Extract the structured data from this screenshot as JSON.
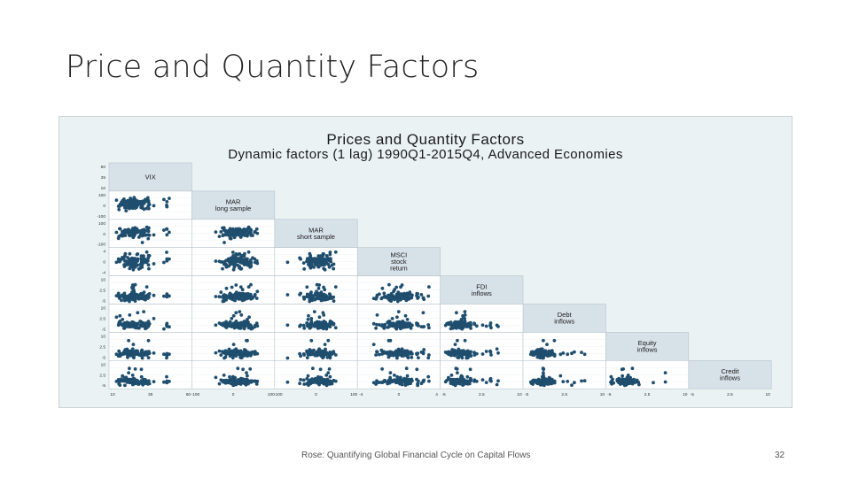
{
  "slide": {
    "title": "Price and Quantity Factors",
    "footer": "Rose: Quantifying Global Financial Cycle on Capital Flows",
    "page_number": "32"
  },
  "colors": {
    "marker": "#1f4e6e",
    "header_fill": "#d7e1e8",
    "background": "#eaf2f3",
    "panel": "#ffffff"
  },
  "chart_data": {
    "type": "scatter",
    "subtype": "scatterplot-matrix-lower-triangle",
    "title": "Prices and Quantity Factors",
    "subtitle": "Dynamic factors (1 lag) 1990Q1-2015Q4, Advanced Economies",
    "grid": true,
    "variables": [
      {
        "name": "VIX",
        "lines": [
          "VIX"
        ],
        "range": [
          10,
          60
        ]
      },
      {
        "name": "MAR long sample",
        "lines": [
          "MAR",
          "long sample"
        ],
        "range": [
          -100,
          100
        ]
      },
      {
        "name": "MAR short sample",
        "lines": [
          "MAR",
          "short sample"
        ],
        "range": [
          -100,
          100
        ]
      },
      {
        "name": "MSCI stock return",
        "lines": [
          "MSCI",
          "stock",
          "return"
        ],
        "range": [
          -4,
          4
        ]
      },
      {
        "name": "FDI inflows",
        "lines": [
          "FDI",
          "inflows"
        ],
        "range": [
          -5,
          10
        ]
      },
      {
        "name": "Debt inflows",
        "lines": [
          "Debt",
          "inflows"
        ],
        "range": [
          -5,
          10
        ]
      },
      {
        "name": "Equity inflows",
        "lines": [
          "Equity",
          "inflows"
        ],
        "range": [
          -5,
          10
        ]
      },
      {
        "name": "Credit inflows",
        "lines": [
          "Credit",
          "inflows"
        ],
        "range": [
          -5,
          10
        ]
      }
    ],
    "n_observations": 104
  }
}
